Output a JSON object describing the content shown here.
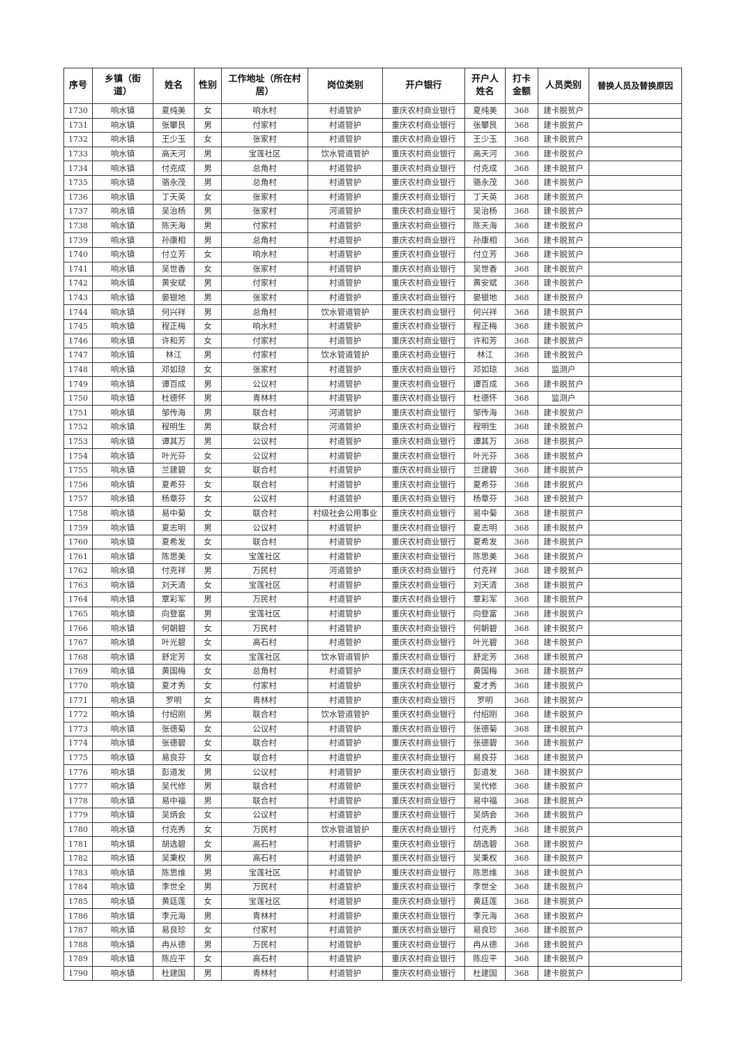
{
  "table": {
    "headers": [
      "序号",
      "乡镇（街道）",
      "姓名",
      "性别",
      "工作地址（所在村居）",
      "岗位类别",
      "开户银行",
      "开户人姓名",
      "打卡金额",
      "人员类别",
      "替换人员及替换原因"
    ],
    "rows": [
      [
        "1730",
        "响水镇",
        "夏纯美",
        "女",
        "响水村",
        "村道管护",
        "重庆农村商业银行",
        "夏纯美",
        "368",
        "建卡脱贫户",
        ""
      ],
      [
        "1731",
        "响水镇",
        "张攀艮",
        "男",
        "付家村",
        "村道管护",
        "重庆农村商业银行",
        "张攀艮",
        "368",
        "建卡脱贫户",
        ""
      ],
      [
        "1732",
        "响水镇",
        "王少玉",
        "女",
        "张家村",
        "村道管护",
        "重庆农村商业银行",
        "王少玉",
        "368",
        "建卡脱贫户",
        ""
      ],
      [
        "1733",
        "响水镇",
        "高天河",
        "男",
        "宝莲社区",
        "饮水管道管护",
        "重庆农村商业银行",
        "高天河",
        "368",
        "建卡脱贫户",
        ""
      ],
      [
        "1734",
        "响水镇",
        "付克成",
        "男",
        "总角村",
        "村道管护",
        "重庆农村商业银行",
        "付克成",
        "368",
        "建卡脱贫户",
        ""
      ],
      [
        "1735",
        "响水镇",
        "骆永茂",
        "男",
        "总角村",
        "村道管护",
        "重庆农村商业银行",
        "骆永茂",
        "368",
        "建卡脱贫户",
        ""
      ],
      [
        "1736",
        "响水镇",
        "丁天英",
        "女",
        "张家村",
        "村道管护",
        "重庆农村商业银行",
        "丁天英",
        "368",
        "建卡脱贫户",
        ""
      ],
      [
        "1737",
        "响水镇",
        "吴治杨",
        "男",
        "张家村",
        "河道管护",
        "重庆农村商业银行",
        "吴治杨",
        "368",
        "建卡脱贫户",
        ""
      ],
      [
        "1738",
        "响水镇",
        "陈天海",
        "男",
        "付家村",
        "村道管护",
        "重庆农村商业银行",
        "陈天海",
        "368",
        "建卡脱贫户",
        ""
      ],
      [
        "1739",
        "响水镇",
        "孙康相",
        "男",
        "总角村",
        "村道管护",
        "重庆农村商业银行",
        "孙康相",
        "368",
        "建卡脱贫户",
        ""
      ],
      [
        "1740",
        "响水镇",
        "付立芳",
        "女",
        "响水村",
        "村道管护",
        "重庆农村商业银行",
        "付立芳",
        "368",
        "建卡脱贫户",
        ""
      ],
      [
        "1741",
        "响水镇",
        "吴世香",
        "女",
        "张家村",
        "村道管护",
        "重庆农村商业银行",
        "吴世香",
        "368",
        "建卡脱贫户",
        ""
      ],
      [
        "1742",
        "响水镇",
        "黄安斌",
        "男",
        "付家村",
        "村道管护",
        "重庆农村商业银行",
        "黄安斌",
        "368",
        "建卡脱贫户",
        ""
      ],
      [
        "1743",
        "响水镇",
        "晏银地",
        "男",
        "张家村",
        "村道管护",
        "重庆农村商业银行",
        "晏银地",
        "368",
        "建卡脱贫户",
        ""
      ],
      [
        "1744",
        "响水镇",
        "何兴祥",
        "男",
        "总角村",
        "饮水管道管护",
        "重庆农村商业银行",
        "何兴祥",
        "368",
        "建卡脱贫户",
        ""
      ],
      [
        "1745",
        "响水镇",
        "程正梅",
        "女",
        "响水村",
        "村道管护",
        "重庆农村商业银行",
        "程正梅",
        "368",
        "建卡脱贫户",
        ""
      ],
      [
        "1746",
        "响水镇",
        "许和芳",
        "女",
        "付家村",
        "村道管护",
        "重庆农村商业银行",
        "许和芳",
        "368",
        "建卡脱贫户",
        ""
      ],
      [
        "1747",
        "响水镇",
        "林江",
        "男",
        "付家村",
        "饮水管道管护",
        "重庆农村商业银行",
        "林江",
        "368",
        "建卡脱贫户",
        ""
      ],
      [
        "1748",
        "响水镇",
        "邓如琼",
        "女",
        "张家村",
        "村道管护",
        "重庆农村商业银行",
        "邓如琼",
        "368",
        "监测户",
        ""
      ],
      [
        "1749",
        "响水镇",
        "谭百成",
        "男",
        "公议村",
        "村道管护",
        "重庆农村商业银行",
        "谭百成",
        "368",
        "建卡脱贫户",
        ""
      ],
      [
        "1750",
        "响水镇",
        "杜德怀",
        "男",
        "青林村",
        "村道管护",
        "重庆农村商业银行",
        "杜德怀",
        "368",
        "监测户",
        ""
      ],
      [
        "1751",
        "响水镇",
        "邹传海",
        "男",
        "联合村",
        "河道管护",
        "重庆农村商业银行",
        "邹传海",
        "368",
        "建卡脱贫户",
        ""
      ],
      [
        "1752",
        "响水镇",
        "程明生",
        "男",
        "联合村",
        "河道管护",
        "重庆农村商业银行",
        "程明生",
        "368",
        "建卡脱贫户",
        ""
      ],
      [
        "1753",
        "响水镇",
        "谭其万",
        "男",
        "公议村",
        "村道管护",
        "重庆农村商业银行",
        "谭其万",
        "368",
        "建卡脱贫户",
        ""
      ],
      [
        "1754",
        "响水镇",
        "叶光芬",
        "女",
        "公议村",
        "村道管护",
        "重庆农村商业银行",
        "叶光芬",
        "368",
        "建卡脱贫户",
        ""
      ],
      [
        "1755",
        "响水镇",
        "兰建碧",
        "女",
        "联合村",
        "村道管护",
        "重庆农村商业银行",
        "兰建碧",
        "368",
        "建卡脱贫户",
        ""
      ],
      [
        "1756",
        "响水镇",
        "夏希芬",
        "女",
        "联合村",
        "村道管护",
        "重庆农村商业银行",
        "夏希芬",
        "368",
        "建卡脱贫户",
        ""
      ],
      [
        "1757",
        "响水镇",
        "杨章芬",
        "女",
        "公议村",
        "村道管护",
        "重庆农村商业银行",
        "杨章芬",
        "368",
        "建卡脱贫户",
        ""
      ],
      [
        "1758",
        "响水镇",
        "易中菊",
        "女",
        "联合村",
        "村级社会公用事业",
        "重庆农村商业银行",
        "易中菊",
        "368",
        "建卡脱贫户",
        ""
      ],
      [
        "1759",
        "响水镇",
        "夏志明",
        "男",
        "公议村",
        "村道管护",
        "重庆农村商业银行",
        "夏志明",
        "368",
        "建卡脱贫户",
        ""
      ],
      [
        "1760",
        "响水镇",
        "夏希发",
        "女",
        "联合村",
        "村道管护",
        "重庆农村商业银行",
        "夏希发",
        "368",
        "建卡脱贫户",
        ""
      ],
      [
        "1761",
        "响水镇",
        "陈思美",
        "女",
        "宝莲社区",
        "村道管护",
        "重庆农村商业银行",
        "陈思美",
        "368",
        "建卡脱贫户",
        ""
      ],
      [
        "1762",
        "响水镇",
        "付克祥",
        "男",
        "万民村",
        "河道管护",
        "重庆农村商业银行",
        "付克祥",
        "368",
        "建卡脱贫户",
        ""
      ],
      [
        "1763",
        "响水镇",
        "刘天清",
        "女",
        "宝莲社区",
        "村道管护",
        "重庆农村商业银行",
        "刘天清",
        "368",
        "建卡脱贫户",
        ""
      ],
      [
        "1764",
        "响水镇",
        "覃彩军",
        "男",
        "万民村",
        "村道管护",
        "重庆农村商业银行",
        "覃彩军",
        "368",
        "建卡脱贫户",
        ""
      ],
      [
        "1765",
        "响水镇",
        "向登富",
        "男",
        "宝莲社区",
        "村道管护",
        "重庆农村商业银行",
        "向登富",
        "368",
        "建卡脱贫户",
        ""
      ],
      [
        "1766",
        "响水镇",
        "何朝碧",
        "女",
        "万民村",
        "村道管护",
        "重庆农村商业银行",
        "何朝碧",
        "368",
        "建卡脱贫户",
        ""
      ],
      [
        "1767",
        "响水镇",
        "叶光碧",
        "女",
        "高石村",
        "村道管护",
        "重庆农村商业银行",
        "叶光碧",
        "368",
        "建卡脱贫户",
        ""
      ],
      [
        "1768",
        "响水镇",
        "舒定芳",
        "女",
        "宝莲社区",
        "饮水管道管护",
        "重庆农村商业银行",
        "舒定芳",
        "368",
        "建卡脱贫户",
        ""
      ],
      [
        "1769",
        "响水镇",
        "黄国梅",
        "女",
        "总角村",
        "村道管护",
        "重庆农村商业银行",
        "黄国梅",
        "368",
        "建卡脱贫户",
        ""
      ],
      [
        "1770",
        "响水镇",
        "夏才秀",
        "女",
        "付家村",
        "村道管护",
        "重庆农村商业银行",
        "夏才秀",
        "368",
        "建卡脱贫户",
        ""
      ],
      [
        "1771",
        "响水镇",
        "罗明",
        "女",
        "青林村",
        "村道管护",
        "重庆农村商业银行",
        "罗明",
        "368",
        "建卡脱贫户",
        ""
      ],
      [
        "1772",
        "响水镇",
        "付绍刚",
        "男",
        "联合村",
        "饮水管道管护",
        "重庆农村商业银行",
        "付绍刚",
        "368",
        "建卡脱贫户",
        ""
      ],
      [
        "1773",
        "响水镇",
        "张德菊",
        "女",
        "公议村",
        "村道管护",
        "重庆农村商业银行",
        "张德菊",
        "368",
        "建卡脱贫户",
        ""
      ],
      [
        "1774",
        "响水镇",
        "张德碧",
        "女",
        "联合村",
        "村道管护",
        "重庆农村商业银行",
        "张德碧",
        "368",
        "建卡脱贫户",
        ""
      ],
      [
        "1775",
        "响水镇",
        "易良芬",
        "女",
        "联合村",
        "村道管护",
        "重庆农村商业银行",
        "易良芬",
        "368",
        "建卡脱贫户",
        ""
      ],
      [
        "1776",
        "响水镇",
        "彭道发",
        "男",
        "公议村",
        "村道管护",
        "重庆农村商业银行",
        "彭道发",
        "368",
        "建卡脱贫户",
        ""
      ],
      [
        "1777",
        "响水镇",
        "吴代修",
        "男",
        "联合村",
        "村道管护",
        "重庆农村商业银行",
        "吴代修",
        "368",
        "建卡脱贫户",
        ""
      ],
      [
        "1778",
        "响水镇",
        "易中福",
        "男",
        "联合村",
        "村道管护",
        "重庆农村商业银行",
        "易中福",
        "368",
        "建卡脱贫户",
        ""
      ],
      [
        "1779",
        "响水镇",
        "吴炳会",
        "女",
        "公议村",
        "村道管护",
        "重庆农村商业银行",
        "吴炳会",
        "368",
        "建卡脱贫户",
        ""
      ],
      [
        "1780",
        "响水镇",
        "付克秀",
        "女",
        "万民村",
        "饮水管道管护",
        "重庆农村商业银行",
        "付克秀",
        "368",
        "建卡脱贫户",
        ""
      ],
      [
        "1781",
        "响水镇",
        "胡选碧",
        "女",
        "高石村",
        "村道管护",
        "重庆农村商业银行",
        "胡选碧",
        "368",
        "建卡脱贫户",
        ""
      ],
      [
        "1782",
        "响水镇",
        "吴秉权",
        "男",
        "高石村",
        "村道管护",
        "重庆农村商业银行",
        "吴秉权",
        "368",
        "建卡脱贫户",
        ""
      ],
      [
        "1783",
        "响水镇",
        "陈思维",
        "男",
        "宝莲社区",
        "村道管护",
        "重庆农村商业银行",
        "陈思维",
        "368",
        "建卡脱贫户",
        ""
      ],
      [
        "1784",
        "响水镇",
        "李世全",
        "男",
        "万民村",
        "村道管护",
        "重庆农村商业银行",
        "李世全",
        "368",
        "建卡脱贫户",
        ""
      ],
      [
        "1785",
        "响水镇",
        "黄廷莲",
        "女",
        "宝莲社区",
        "村道管护",
        "重庆农村商业银行",
        "黄廷莲",
        "368",
        "建卡脱贫户",
        ""
      ],
      [
        "1786",
        "响水镇",
        "李元海",
        "男",
        "青林村",
        "村道管护",
        "重庆农村商业银行",
        "李元海",
        "368",
        "建卡脱贫户",
        ""
      ],
      [
        "1787",
        "响水镇",
        "易良珍",
        "女",
        "付家村",
        "村道管护",
        "重庆农村商业银行",
        "易良珍",
        "368",
        "建卡脱贫户",
        ""
      ],
      [
        "1788",
        "响水镇",
        "冉从德",
        "男",
        "万民村",
        "村道管护",
        "重庆农村商业银行",
        "冉从德",
        "368",
        "建卡脱贫户",
        ""
      ],
      [
        "1789",
        "响水镇",
        "陈应平",
        "女",
        "高石村",
        "村道管护",
        "重庆农村商业银行",
        "陈应平",
        "368",
        "建卡脱贫户",
        ""
      ],
      [
        "1790",
        "响水镇",
        "杜建国",
        "男",
        "青林村",
        "村道管护",
        "重庆农村商业银行",
        "杜建国",
        "368",
        "建卡脱贫户",
        ""
      ]
    ]
  }
}
